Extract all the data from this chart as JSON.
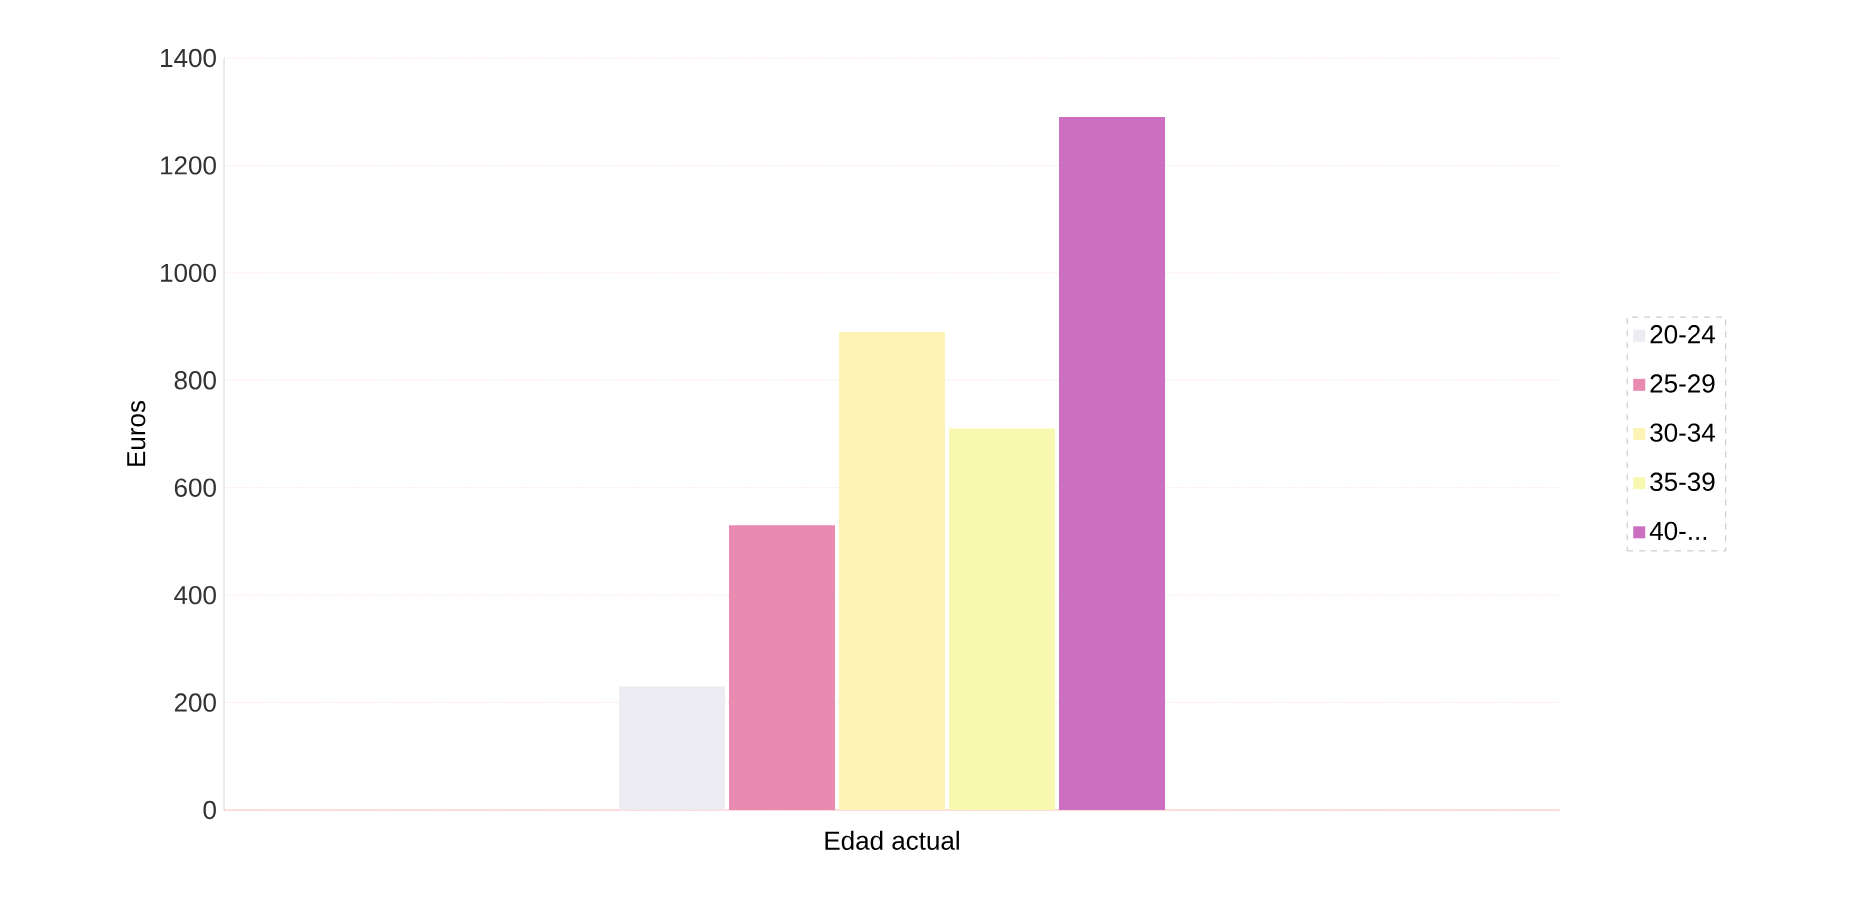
{
  "chart_data": {
    "type": "bar",
    "xlabel": "Edad actual",
    "ylabel": "Euros",
    "categories": [
      null
    ],
    "series": [
      {
        "name": "20-24",
        "color": "#ececf2",
        "values": [
          230
        ]
      },
      {
        "name": "25-29",
        "color": "#e98bb0",
        "values": [
          530
        ]
      },
      {
        "name": "30-34",
        "color": "#fdf3b4",
        "values": [
          890
        ]
      },
      {
        "name": "35-39",
        "color": "#f8f8b0",
        "values": [
          710
        ]
      },
      {
        "name": "40-...",
        "color": "#cc6fc0",
        "values": [
          1290
        ]
      }
    ],
    "ylim": [
      0,
      1400
    ],
    "yticks": [
      0,
      200,
      400,
      600,
      800,
      1000,
      1200,
      1400
    ],
    "grid": "y",
    "legend": "right"
  }
}
